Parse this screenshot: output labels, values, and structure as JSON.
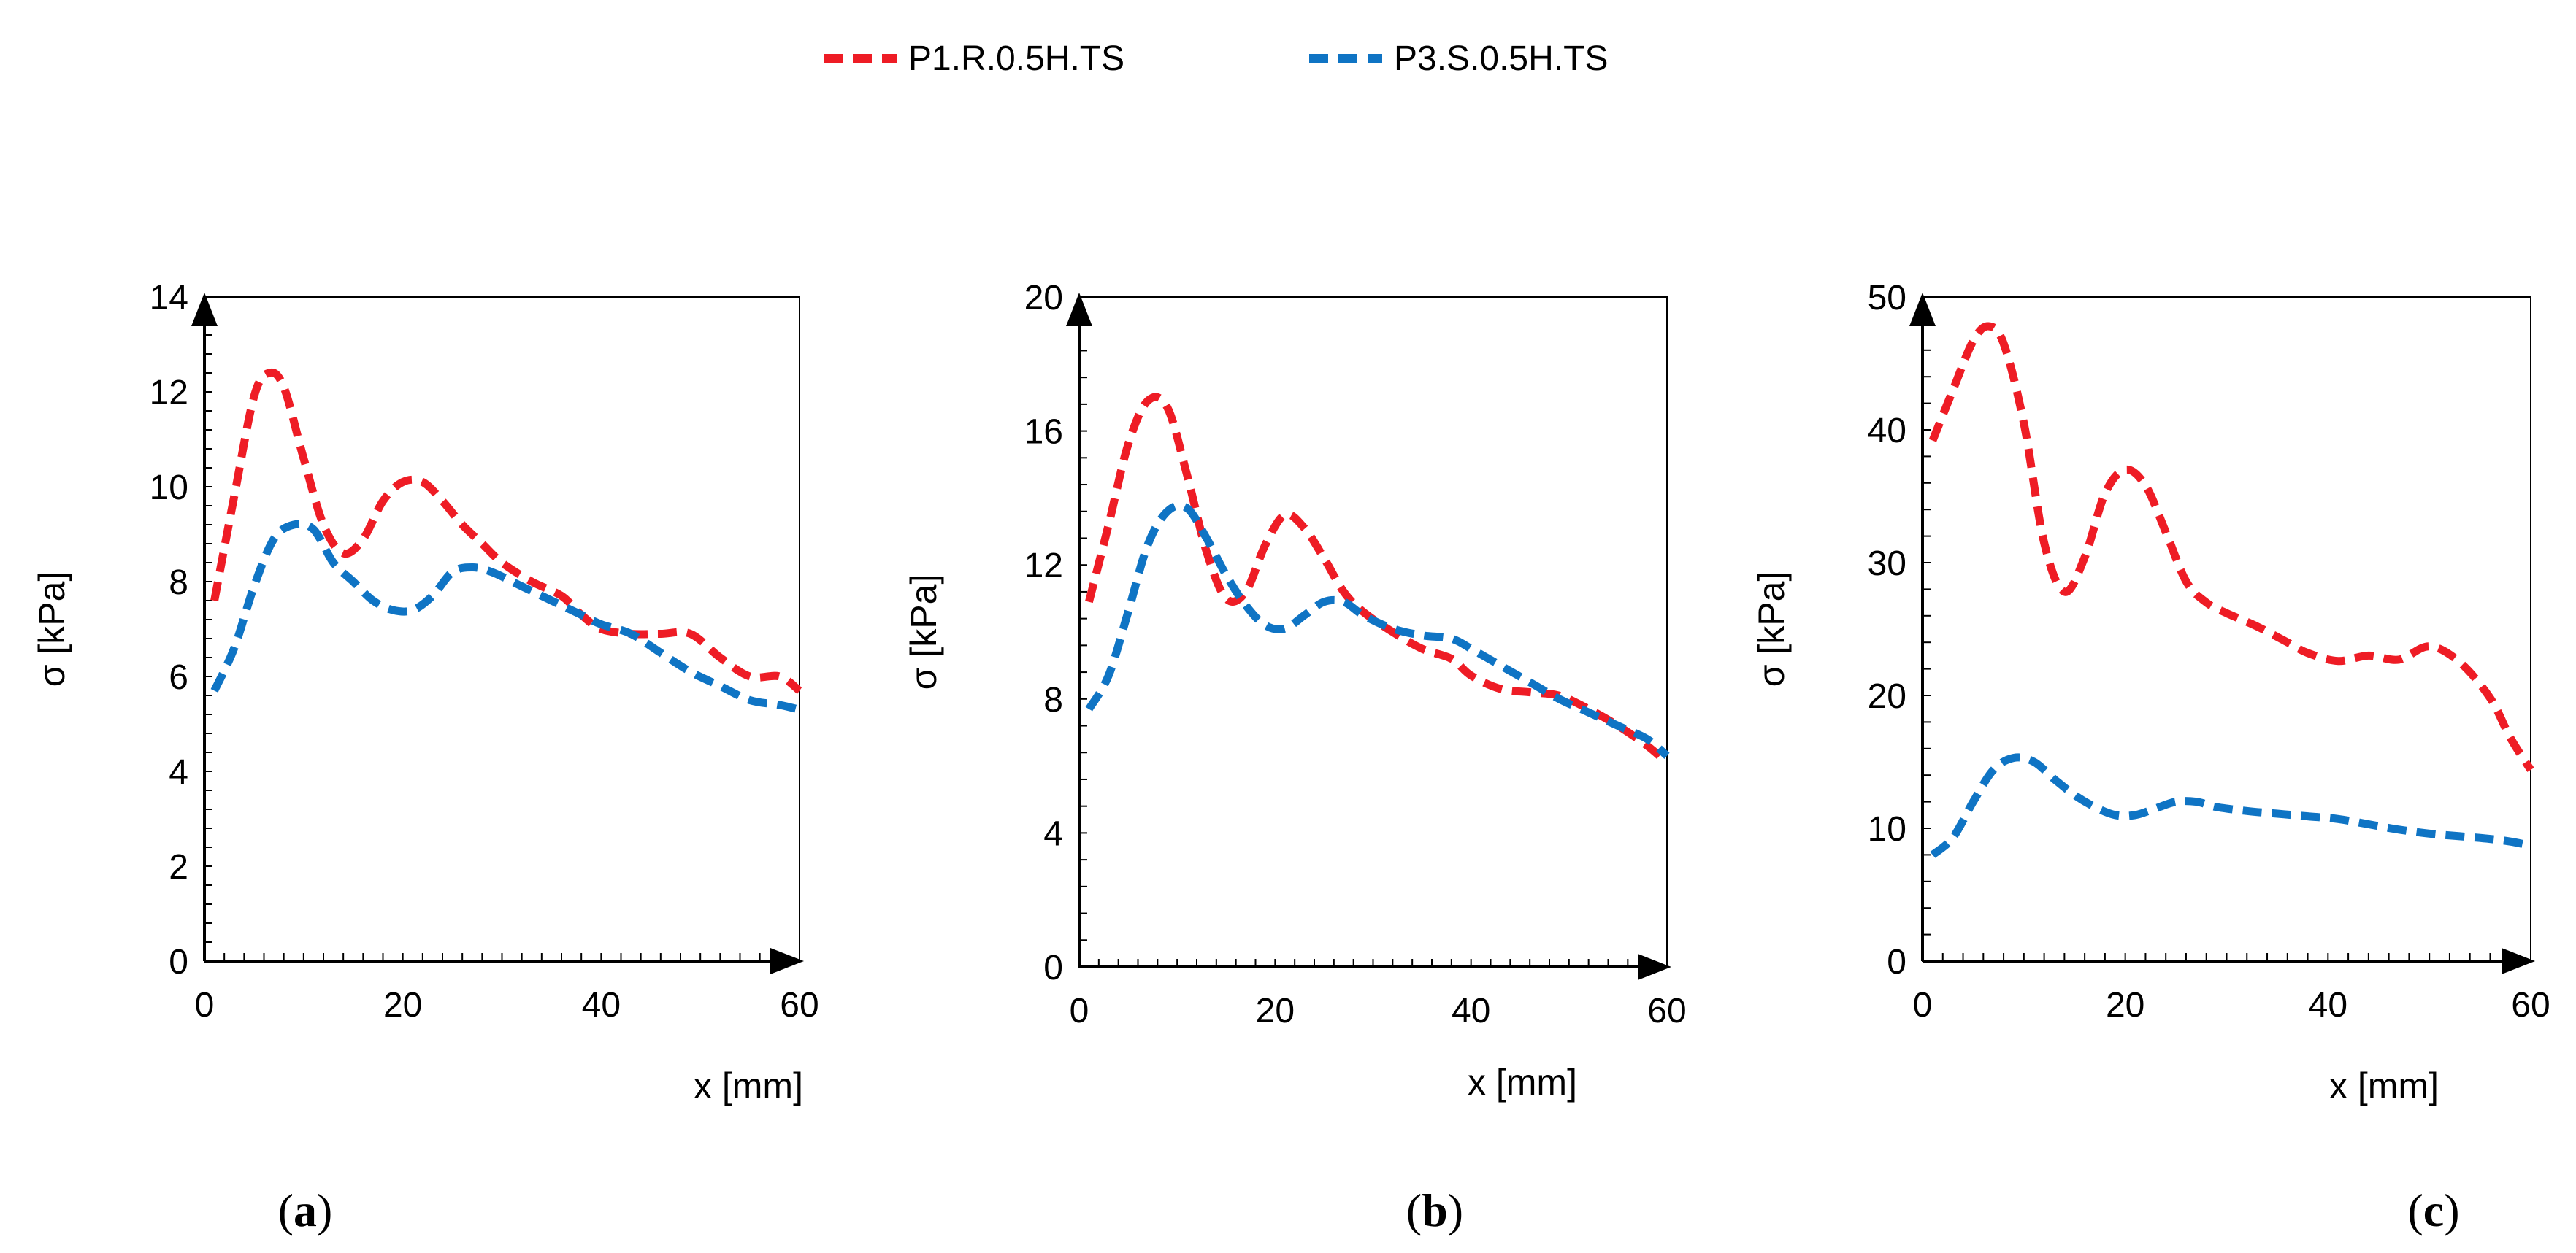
{
  "figure": {
    "legend": [
      {
        "name": "P1.R.0.5H.TS",
        "color": "#ee1c25",
        "dash": "dashed"
      },
      {
        "name": "P3.S.0.5H.TS",
        "color": "#0f74c4",
        "dash": "dashed"
      }
    ]
  },
  "chart_data": [
    {
      "type": "line",
      "panel": "a",
      "panel_label_open": "(",
      "panel_label_letter": "a",
      "panel_label_close": ")",
      "xlabel": "x [mm]",
      "ylabel": "σ [kPa]",
      "xlim": [
        0,
        60
      ],
      "ylim": [
        0,
        14
      ],
      "xticks": [
        0,
        20,
        40,
        60
      ],
      "yticks": [
        0,
        2,
        4,
        6,
        8,
        10,
        12,
        14
      ],
      "series": [
        {
          "name": "P1.R.0.5H.TS",
          "x": [
            1,
            3,
            5,
            6.5,
            8,
            10,
            12,
            14,
            16,
            18,
            20,
            22,
            24,
            26,
            28,
            30,
            33,
            36,
            38,
            40,
            43,
            46,
            49,
            52,
            55,
            58,
            60
          ],
          "y": [
            7.6,
            9.8,
            11.9,
            12.4,
            12.1,
            10.6,
            9.2,
            8.6,
            8.9,
            9.7,
            10.1,
            10.1,
            9.7,
            9.2,
            8.8,
            8.4,
            8.0,
            7.7,
            7.3,
            7.0,
            6.9,
            6.9,
            6.9,
            6.4,
            6.0,
            6.0,
            5.7
          ]
        },
        {
          "name": "P3.S.0.5H.TS",
          "x": [
            1,
            3,
            5,
            7,
            9,
            11,
            13,
            15,
            17,
            19,
            21,
            23,
            25,
            27,
            29,
            32,
            35,
            38,
            40,
            43,
            46,
            49,
            52,
            55,
            58,
            60
          ],
          "y": [
            5.7,
            6.6,
            7.9,
            8.9,
            9.2,
            9.1,
            8.4,
            8.0,
            7.6,
            7.4,
            7.4,
            7.7,
            8.2,
            8.3,
            8.2,
            7.9,
            7.6,
            7.3,
            7.1,
            6.9,
            6.5,
            6.1,
            5.8,
            5.5,
            5.4,
            5.3
          ]
        }
      ]
    },
    {
      "type": "line",
      "panel": "b",
      "panel_label_open": "(",
      "panel_label_letter": "b",
      "panel_label_close": ")",
      "xlabel": "x [mm]",
      "ylabel": "σ [kPa]",
      "xlim": [
        0,
        60
      ],
      "ylim": [
        0,
        20
      ],
      "xticks": [
        0,
        20,
        40,
        60
      ],
      "yticks": [
        0,
        4,
        8,
        12,
        16,
        20
      ],
      "series": [
        {
          "name": "P1.R.0.5H.TS",
          "x": [
            1,
            3,
            5,
            7,
            9,
            11,
            13,
            15,
            17,
            19,
            21,
            23,
            25,
            27,
            29,
            32,
            35,
            38,
            40,
            43,
            46,
            49,
            52,
            55,
            58,
            60
          ],
          "y": [
            10.9,
            13.2,
            15.6,
            16.9,
            16.7,
            14.7,
            12.4,
            11.0,
            11.2,
            12.6,
            13.5,
            13.1,
            12.2,
            11.2,
            10.6,
            10.0,
            9.5,
            9.2,
            8.7,
            8.3,
            8.2,
            8.1,
            7.7,
            7.2,
            6.6,
            6.1
          ]
        },
        {
          "name": "P3.S.0.5H.TS",
          "x": [
            1,
            3,
            5,
            7,
            9,
            11,
            13,
            15,
            17,
            19,
            21,
            23,
            25,
            27,
            29,
            32,
            35,
            38,
            40,
            43,
            46,
            49,
            52,
            55,
            58,
            60
          ],
          "y": [
            7.7,
            8.7,
            10.6,
            12.6,
            13.6,
            13.7,
            12.8,
            11.7,
            10.8,
            10.2,
            10.1,
            10.5,
            10.9,
            10.9,
            10.5,
            10.1,
            9.9,
            9.8,
            9.5,
            9.0,
            8.5,
            8.0,
            7.6,
            7.2,
            6.8,
            6.3
          ]
        }
      ]
    },
    {
      "type": "line",
      "panel": "c",
      "panel_label_open": "(",
      "panel_label_letter": "c",
      "panel_label_close": ")",
      "xlabel": "x [mm]",
      "ylabel": "σ [kPa]",
      "xlim": [
        0,
        60
      ],
      "ylim": [
        0,
        50
      ],
      "xticks": [
        0,
        20,
        40,
        60
      ],
      "yticks": [
        0,
        10,
        20,
        30,
        40,
        50
      ],
      "series": [
        {
          "name": "P1.R.0.5H.TS",
          "x": [
            1,
            3,
            5,
            6.5,
            8,
            10,
            12,
            14,
            16,
            18,
            20,
            22,
            24,
            26,
            28,
            30,
            33,
            36,
            38,
            41,
            44,
            47,
            50,
            53,
            56,
            58,
            60
          ],
          "y": [
            39.2,
            43.0,
            46.7,
            47.8,
            46.5,
            40.5,
            31.5,
            27.8,
            30.4,
            35.2,
            37.0,
            35.8,
            32.3,
            28.6,
            27.0,
            26.2,
            25.2,
            24.0,
            23.2,
            22.6,
            23.0,
            22.7,
            23.7,
            22.5,
            19.8,
            16.8,
            14.4
          ]
        },
        {
          "name": "P3.S.0.5H.TS",
          "x": [
            1,
            3,
            5,
            7,
            9,
            11,
            13,
            15,
            17,
            19,
            21,
            23,
            25,
            27,
            29,
            32,
            35,
            38,
            41,
            44,
            47,
            50,
            53,
            56,
            58,
            60
          ],
          "y": [
            8.0,
            9.3,
            12.0,
            14.4,
            15.3,
            15.0,
            13.7,
            12.5,
            11.6,
            11.0,
            11.0,
            11.5,
            12.0,
            12.0,
            11.6,
            11.3,
            11.1,
            10.9,
            10.7,
            10.3,
            9.9,
            9.6,
            9.4,
            9.2,
            9.0,
            8.7
          ]
        }
      ]
    }
  ]
}
